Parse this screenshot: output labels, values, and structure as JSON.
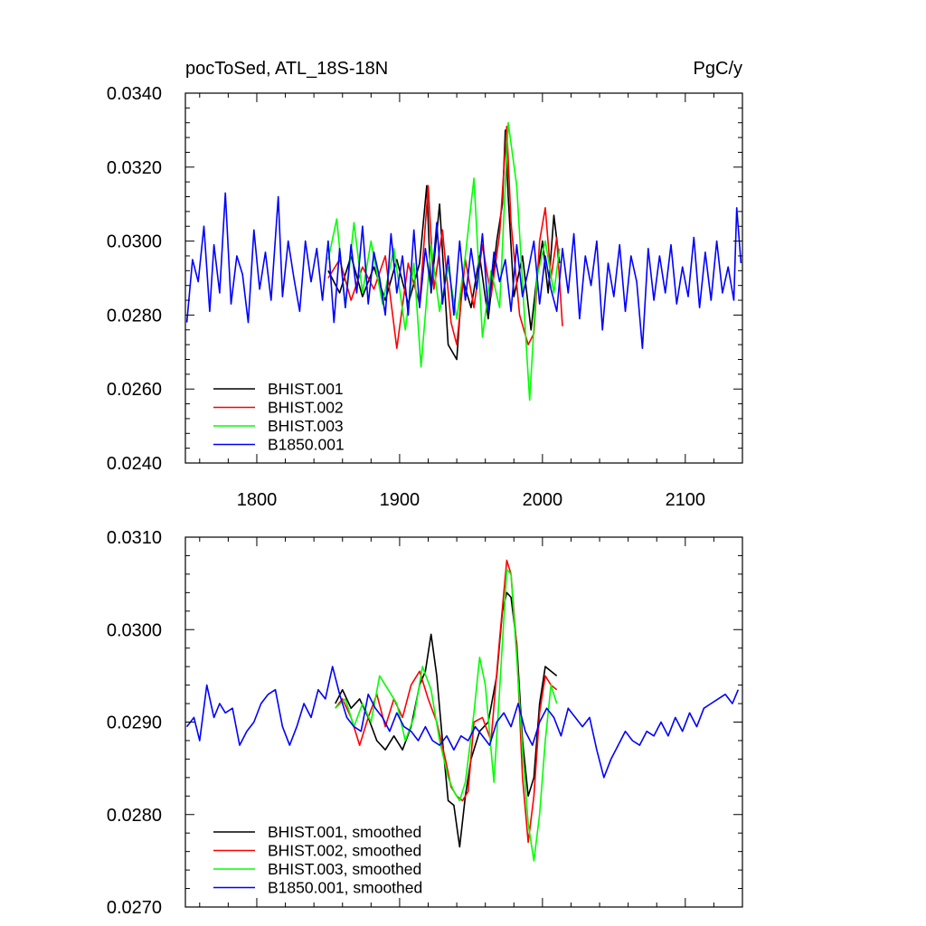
{
  "chart_data": [
    {
      "type": "line",
      "title_left": "pocToSed, ATL_18S-18N",
      "title_right": "PgC/y",
      "xlim": [
        1750,
        2140
      ],
      "ylim": [
        0.024,
        0.034
      ],
      "x_ticks": [
        1800,
        1900,
        2000,
        2100
      ],
      "x_tick_labels": [
        "1800",
        "1900",
        "2000",
        "2100"
      ],
      "y_ticks": [
        0.024,
        0.026,
        0.028,
        0.03,
        0.032,
        0.034
      ],
      "y_tick_labels": [
        "0.0240",
        "0.0260",
        "0.0280",
        "0.0300",
        "0.0320",
        "0.0340"
      ],
      "legend_position": "bottom-left",
      "series": [
        {
          "name": "BHIST.001",
          "color": "#000000",
          "x": [
            1850,
            1858,
            1866,
            1874,
            1882,
            1890,
            1898,
            1906,
            1914,
            1919,
            1922,
            1928,
            1934,
            1940,
            1944,
            1950,
            1956,
            1962,
            1968,
            1972,
            1974,
            1976,
            1980,
            1986,
            1992,
            1996,
            2000,
            2004,
            2008,
            2012
          ],
          "y": [
            0.0292,
            0.0286,
            0.0296,
            0.0285,
            0.0293,
            0.0284,
            0.0295,
            0.0283,
            0.0294,
            0.0315,
            0.0286,
            0.031,
            0.0272,
            0.0268,
            0.029,
            0.0282,
            0.0296,
            0.0279,
            0.03,
            0.031,
            0.033,
            0.0312,
            0.0285,
            0.0296,
            0.0276,
            0.029,
            0.03,
            0.0286,
            0.0307,
            0.0294
          ]
        },
        {
          "name": "BHIST.002",
          "color": "#ff0000",
          "x": [
            1850,
            1858,
            1866,
            1874,
            1882,
            1890,
            1898,
            1906,
            1914,
            1920,
            1924,
            1930,
            1936,
            1940,
            1946,
            1952,
            1958,
            1964,
            1970,
            1975,
            1978,
            1984,
            1990,
            1994,
            1998,
            2002,
            2006,
            2010,
            2014
          ],
          "y": [
            0.029,
            0.0295,
            0.0284,
            0.0293,
            0.0287,
            0.0296,
            0.0271,
            0.0294,
            0.0283,
            0.0315,
            0.0287,
            0.0303,
            0.0278,
            0.0272,
            0.0295,
            0.0282,
            0.0299,
            0.0285,
            0.0302,
            0.0331,
            0.0305,
            0.028,
            0.0272,
            0.0275,
            0.03,
            0.0309,
            0.029,
            0.0301,
            0.0277
          ]
        },
        {
          "name": "BHIST.003",
          "color": "#00ff00",
          "x": [
            1850,
            1856,
            1862,
            1868,
            1874,
            1880,
            1888,
            1896,
            1904,
            1910,
            1915,
            1922,
            1928,
            1934,
            1940,
            1946,
            1952,
            1958,
            1964,
            1970,
            1976,
            1982,
            1988,
            1991,
            1996,
            2002,
            2008,
            2012
          ],
          "y": [
            0.0295,
            0.0306,
            0.0282,
            0.0305,
            0.0286,
            0.03,
            0.0283,
            0.0298,
            0.0276,
            0.0294,
            0.0266,
            0.0299,
            0.0281,
            0.0293,
            0.0279,
            0.0296,
            0.0317,
            0.0274,
            0.0292,
            0.0282,
            0.0332,
            0.0315,
            0.0276,
            0.0257,
            0.029,
            0.03,
            0.0286,
            0.0298
          ]
        },
        {
          "name": "B1850.001",
          "color": "#0000ff",
          "x": [
            1751,
            1755,
            1759,
            1763,
            1767,
            1770,
            1774,
            1778,
            1782,
            1786,
            1790,
            1794,
            1798,
            1802,
            1806,
            1810,
            1815,
            1818,
            1822,
            1826,
            1830,
            1834,
            1838,
            1842,
            1846,
            1850,
            1854,
            1858,
            1862,
            1866,
            1870,
            1874,
            1878,
            1882,
            1886,
            1890,
            1894,
            1898,
            1902,
            1906,
            1910,
            1914,
            1918,
            1922,
            1926,
            1930,
            1934,
            1938,
            1942,
            1946,
            1950,
            1954,
            1958,
            1962,
            1966,
            1970,
            1974,
            1978,
            1982,
            1986,
            1990,
            1994,
            1998,
            2002,
            2006,
            2010,
            2014,
            2018,
            2022,
            2026,
            2030,
            2034,
            2038,
            2042,
            2046,
            2050,
            2054,
            2058,
            2062,
            2066,
            2070,
            2074,
            2078,
            2082,
            2086,
            2090,
            2094,
            2098,
            2102,
            2106,
            2110,
            2114,
            2118,
            2122,
            2126,
            2130,
            2134,
            2136,
            2139
          ],
          "y": [
            0.0278,
            0.0295,
            0.0289,
            0.0304,
            0.0281,
            0.0299,
            0.0286,
            0.0313,
            0.0283,
            0.0296,
            0.0291,
            0.0278,
            0.0303,
            0.0287,
            0.0297,
            0.0284,
            0.0312,
            0.0285,
            0.03,
            0.029,
            0.0281,
            0.03,
            0.0289,
            0.0298,
            0.0284,
            0.03,
            0.0278,
            0.0298,
            0.0282,
            0.0299,
            0.0286,
            0.0304,
            0.0283,
            0.0297,
            0.029,
            0.028,
            0.0302,
            0.0286,
            0.0296,
            0.028,
            0.0303,
            0.0282,
            0.0298,
            0.0287,
            0.0305,
            0.0283,
            0.0296,
            0.028,
            0.03,
            0.0284,
            0.0298,
            0.0287,
            0.0302,
            0.0281,
            0.0297,
            0.0289,
            0.0295,
            0.0281,
            0.0299,
            0.0285,
            0.0292,
            0.03,
            0.0283,
            0.0296,
            0.0287,
            0.0281,
            0.0298,
            0.0286,
            0.0302,
            0.0279,
            0.0296,
            0.0288,
            0.03,
            0.0276,
            0.0294,
            0.0285,
            0.0299,
            0.0281,
            0.0296,
            0.0289,
            0.0271,
            0.0298,
            0.0284,
            0.0296,
            0.0286,
            0.0299,
            0.0283,
            0.0293,
            0.0285,
            0.0301,
            0.0282,
            0.0297,
            0.0284,
            0.03,
            0.0286,
            0.0293,
            0.0284,
            0.0309,
            0.0294
          ]
        }
      ]
    },
    {
      "type": "line",
      "xlim": [
        1750,
        2140
      ],
      "ylim": [
        0.027,
        0.031
      ],
      "x_ticks": [
        1800,
        1900,
        2000,
        2100
      ],
      "y_ticks": [
        0.027,
        0.028,
        0.029,
        0.03,
        0.031
      ],
      "y_tick_labels": [
        "0.0270",
        "0.0280",
        "0.0290",
        "0.0300",
        "0.0310"
      ],
      "legend_position": "bottom-left",
      "series": [
        {
          "name": "BHIST.001, smoothed",
          "color": "#000000",
          "x": [
            1855,
            1860,
            1866,
            1872,
            1878,
            1884,
            1890,
            1896,
            1902,
            1908,
            1914,
            1918,
            1922,
            1926,
            1930,
            1934,
            1938,
            1942,
            1946,
            1950,
            1956,
            1962,
            1968,
            1972,
            1975,
            1978,
            1982,
            1986,
            1990,
            1994,
            1998,
            2002,
            2006,
            2010
          ],
          "y": [
            0.0292,
            0.02935,
            0.02915,
            0.02925,
            0.02905,
            0.0288,
            0.0287,
            0.02885,
            0.0287,
            0.02895,
            0.0294,
            0.02955,
            0.02995,
            0.0295,
            0.0288,
            0.02815,
            0.0281,
            0.02765,
            0.0282,
            0.0286,
            0.0289,
            0.029,
            0.0295,
            0.0302,
            0.0304,
            0.03035,
            0.02985,
            0.0288,
            0.0282,
            0.0284,
            0.0292,
            0.0296,
            0.02955,
            0.0295
          ]
        },
        {
          "name": "BHIST.002, smoothed",
          "color": "#ff0000",
          "x": [
            1855,
            1860,
            1866,
            1872,
            1878,
            1884,
            1890,
            1896,
            1902,
            1908,
            1914,
            1920,
            1926,
            1932,
            1936,
            1940,
            1944,
            1948,
            1952,
            1958,
            1964,
            1970,
            1975,
            1978,
            1982,
            1986,
            1990,
            1994,
            1998,
            2002,
            2006,
            2010
          ],
          "y": [
            0.02915,
            0.02925,
            0.02905,
            0.02875,
            0.02905,
            0.0293,
            0.02895,
            0.02925,
            0.02905,
            0.0294,
            0.02955,
            0.02925,
            0.029,
            0.0286,
            0.0283,
            0.0282,
            0.02815,
            0.02825,
            0.029,
            0.02905,
            0.0288,
            0.0299,
            0.03075,
            0.0306,
            0.0298,
            0.0284,
            0.0277,
            0.0282,
            0.0291,
            0.0295,
            0.0294,
            0.02935
          ]
        },
        {
          "name": "BHIST.003, smoothed",
          "color": "#00ff00",
          "x": [
            1855,
            1862,
            1868,
            1874,
            1880,
            1886,
            1892,
            1898,
            1904,
            1910,
            1916,
            1922,
            1928,
            1934,
            1938,
            1942,
            1946,
            1952,
            1956,
            1960,
            1966,
            1970,
            1975,
            1978,
            1982,
            1986,
            1990,
            1994,
            1998,
            2002,
            2006,
            2010
          ],
          "y": [
            0.02915,
            0.02925,
            0.02895,
            0.0292,
            0.029,
            0.0295,
            0.02935,
            0.0292,
            0.0288,
            0.02905,
            0.0296,
            0.02935,
            0.0288,
            0.0284,
            0.02825,
            0.02815,
            0.02835,
            0.0291,
            0.0297,
            0.0294,
            0.02835,
            0.02935,
            0.03065,
            0.0306,
            0.0297,
            0.0287,
            0.0279,
            0.0275,
            0.028,
            0.0288,
            0.0294,
            0.0292
          ]
        },
        {
          "name": "B1850.001, smoothed",
          "color": "#0000ff",
          "x": [
            1751,
            1756,
            1760,
            1765,
            1770,
            1774,
            1778,
            1783,
            1788,
            1793,
            1798,
            1803,
            1808,
            1813,
            1818,
            1823,
            1828,
            1833,
            1838,
            1843,
            1848,
            1853,
            1858,
            1863,
            1868,
            1873,
            1878,
            1883,
            1888,
            1893,
            1898,
            1903,
            1908,
            1913,
            1918,
            1923,
            1928,
            1933,
            1938,
            1943,
            1948,
            1953,
            1958,
            1963,
            1968,
            1973,
            1978,
            1983,
            1988,
            1993,
            1998,
            2003,
            2008,
            2013,
            2018,
            2023,
            2028,
            2033,
            2038,
            2043,
            2048,
            2053,
            2058,
            2063,
            2068,
            2073,
            2078,
            2083,
            2088,
            2093,
            2098,
            2103,
            2108,
            2113,
            2118,
            2123,
            2128,
            2133,
            2137
          ],
          "y": [
            0.02895,
            0.02905,
            0.0288,
            0.0294,
            0.02905,
            0.0292,
            0.0291,
            0.02915,
            0.02875,
            0.0289,
            0.029,
            0.0292,
            0.0293,
            0.02935,
            0.02895,
            0.02875,
            0.02895,
            0.0292,
            0.02905,
            0.02935,
            0.02925,
            0.0296,
            0.0293,
            0.02905,
            0.02895,
            0.0289,
            0.0293,
            0.02915,
            0.02905,
            0.0289,
            0.0291,
            0.02895,
            0.0289,
            0.0288,
            0.02895,
            0.0288,
            0.02875,
            0.02885,
            0.0287,
            0.02885,
            0.0288,
            0.02895,
            0.02885,
            0.02875,
            0.029,
            0.0291,
            0.02895,
            0.0292,
            0.0289,
            0.02875,
            0.029,
            0.02915,
            0.02905,
            0.02885,
            0.02915,
            0.02905,
            0.02895,
            0.02905,
            0.0287,
            0.0284,
            0.0286,
            0.02875,
            0.0289,
            0.0288,
            0.02875,
            0.0289,
            0.02885,
            0.029,
            0.02885,
            0.02905,
            0.0289,
            0.0291,
            0.02895,
            0.02915,
            0.0292,
            0.02925,
            0.0293,
            0.0292,
            0.02935
          ]
        }
      ]
    }
  ]
}
